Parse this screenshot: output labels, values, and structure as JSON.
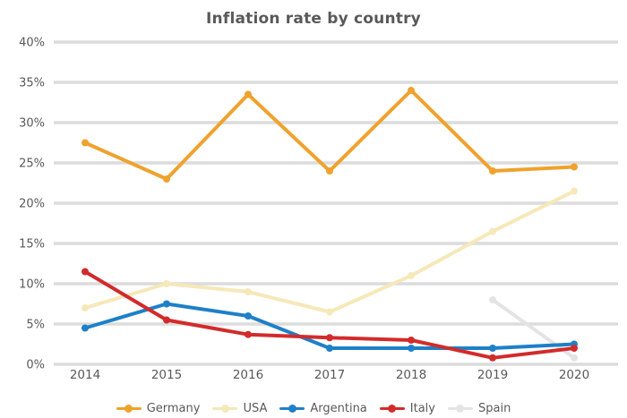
{
  "title": "Inflation rate by country",
  "colors": {
    "background": "#ffffff",
    "text": "#595959",
    "gridline": "#dcdcdc"
  },
  "chart_data": {
    "type": "line",
    "title": "Inflation rate by country",
    "xlabel": "",
    "ylabel": "",
    "categories": [
      "2014",
      "2015",
      "2016",
      "2017",
      "2018",
      "2019",
      "2020"
    ],
    "yticks": [
      "0%",
      "5%",
      "10%",
      "15%",
      "20%",
      "25%",
      "30%",
      "35%",
      "40%"
    ],
    "ylim": [
      0,
      40
    ],
    "grid": true,
    "legend_position": "bottom",
    "series": [
      {
        "name": "Germany",
        "color": "#efa22d",
        "values": [
          27.5,
          23.0,
          33.5,
          24.0,
          34.0,
          24.0,
          24.5
        ]
      },
      {
        "name": "USA",
        "color": "#f6e8b9",
        "values": [
          7.0,
          10.0,
          9.0,
          6.5,
          11.0,
          16.5,
          21.5
        ]
      },
      {
        "name": "Argentina",
        "color": "#1e80c7",
        "values": [
          4.5,
          7.5,
          6.0,
          2.0,
          2.0,
          2.0,
          2.5
        ]
      },
      {
        "name": "Italy",
        "color": "#d22b2b",
        "values": [
          11.5,
          5.5,
          3.7,
          3.3,
          3.0,
          0.8,
          2.0
        ]
      },
      {
        "name": "Spain",
        "color": "#e4e4e4",
        "values": [
          null,
          null,
          null,
          null,
          null,
          8.0,
          0.8
        ]
      }
    ]
  }
}
